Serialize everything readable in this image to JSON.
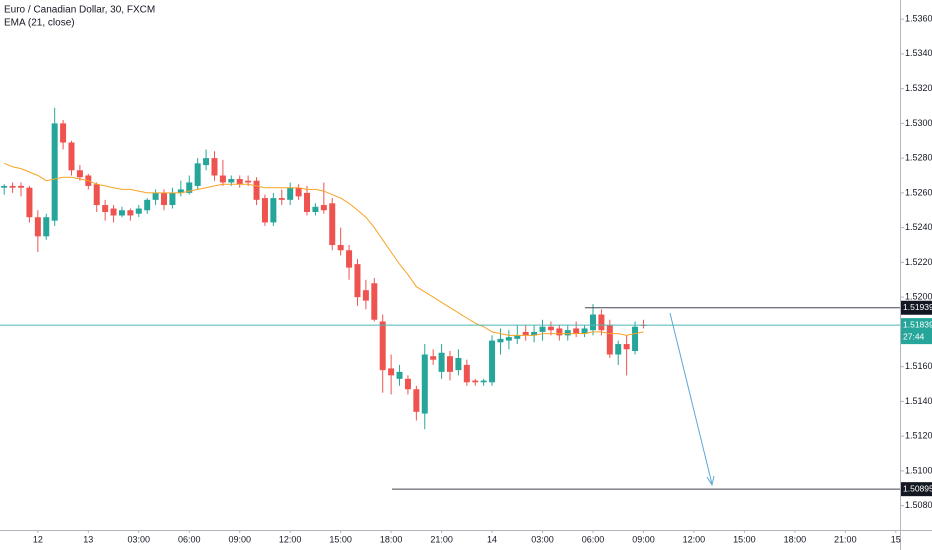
{
  "chart_data": {
    "type": "candlestick",
    "title": "Euro / Canadian Dollar, 30, FXCM",
    "up_color": "#26a69a",
    "down_color": "#ef5350",
    "categories": [
      null,
      null,
      null,
      null,
      "12",
      null,
      null,
      null,
      null,
      null,
      "13",
      null,
      null,
      null,
      null,
      null,
      "03:00",
      null,
      null,
      null,
      null,
      null,
      "06:00",
      null,
      null,
      null,
      null,
      null,
      "09:00",
      null,
      null,
      null,
      null,
      null,
      "12:00",
      null,
      null,
      null,
      null,
      null,
      "15:00",
      null,
      null,
      null,
      null,
      null,
      "18:00",
      null,
      null,
      null,
      null,
      null,
      "21:00",
      null,
      null,
      null,
      null,
      null,
      "14",
      null,
      null,
      null,
      null,
      null,
      "03:00",
      null,
      null,
      null,
      null,
      null,
      "06:00",
      null,
      null,
      null,
      null,
      null,
      "09:00",
      null,
      null,
      null,
      null,
      null,
      "12:00",
      null,
      null,
      null,
      null,
      null,
      "15:00",
      null,
      null,
      null,
      null,
      null,
      "18:00",
      null,
      null,
      null,
      null,
      null,
      "21:00",
      null,
      null,
      null,
      null,
      null,
      "15"
    ],
    "open": [
      1.5263,
      1.5264,
      1.5264,
      1.5263,
      1.5246,
      1.5235,
      1.5244,
      1.53,
      1.5289,
      1.5273,
      1.527,
      1.5265,
      1.5253,
      1.5251,
      1.5247,
      1.525,
      1.5248,
      1.525,
      1.5256,
      1.526,
      1.5253,
      1.526,
      1.526,
      1.5264,
      1.5276,
      1.528,
      1.527,
      1.5266,
      1.5268,
      1.5267,
      1.5267,
      1.5257,
      1.5243,
      1.5257,
      1.5256,
      1.5263,
      1.526,
      1.5249,
      1.5253,
      1.5254,
      1.523,
      1.5227,
      1.5219,
      1.5204,
      1.5208,
      1.5186,
      1.5159,
      1.5153,
      1.5153,
      1.5147,
      1.5133,
      1.5166,
      1.5157,
      1.5166,
      1.5158,
      1.5161,
      1.5152,
      1.5151,
      1.5151,
      1.5174,
      1.5175,
      1.5176,
      1.518,
      1.5178,
      1.518,
      1.5183,
      1.5182,
      1.5178,
      1.5182,
      1.5179,
      1.5181,
      1.519,
      1.5184,
      1.5167,
      1.5173,
      1.5169,
      1.5184,
      null,
      null,
      null,
      null,
      null,
      null,
      null,
      null,
      null,
      null,
      null,
      null,
      null,
      null,
      null,
      null,
      null,
      null,
      null,
      null,
      null,
      null,
      null,
      null,
      null,
      null,
      null,
      null,
      null,
      null
    ],
    "high": [
      1.5265,
      1.5266,
      1.5266,
      1.5264,
      1.525,
      1.5248,
      1.5309,
      1.5302,
      1.529,
      1.5276,
      1.5271,
      1.5266,
      1.5256,
      1.5253,
      1.5252,
      1.5251,
      1.5253,
      1.5257,
      1.5262,
      1.5262,
      1.5263,
      1.5267,
      1.527,
      1.528,
      1.5285,
      1.5284,
      1.5279,
      1.527,
      1.527,
      1.527,
      1.5269,
      1.5259,
      1.526,
      1.5262,
      1.5266,
      1.5265,
      1.5264,
      1.5254,
      1.5266,
      1.5257,
      1.524,
      1.523,
      1.5222,
      1.521,
      1.5211,
      1.519,
      1.5167,
      1.5161,
      1.5155,
      1.5149,
      1.5173,
      1.517,
      1.5173,
      1.5169,
      1.517,
      1.5164,
      1.5153,
      1.5153,
      1.5178,
      1.5182,
      1.5181,
      1.5184,
      1.5184,
      1.5184,
      1.5187,
      1.5186,
      1.5184,
      1.5184,
      1.5186,
      1.5184,
      1.5196,
      1.5193,
      1.5187,
      1.5175,
      1.5178,
      1.5186,
      1.5187,
      null,
      null,
      null,
      null,
      null,
      null,
      null,
      null,
      null,
      null,
      null,
      null,
      null,
      null,
      null,
      null,
      null,
      null,
      null,
      null,
      null,
      null,
      null,
      null,
      null,
      null,
      null,
      null,
      null,
      null
    ],
    "low": [
      1.5259,
      1.526,
      1.5258,
      1.5243,
      1.5226,
      1.5233,
      1.5241,
      1.5285,
      1.527,
      1.5267,
      1.5262,
      1.5249,
      1.5244,
      1.5243,
      1.5246,
      1.5244,
      1.5246,
      1.5248,
      1.5253,
      1.525,
      1.5251,
      1.5258,
      1.5259,
      1.5262,
      1.5273,
      1.5267,
      1.5264,
      1.5264,
      1.5263,
      1.5264,
      1.5253,
      1.5241,
      1.5241,
      1.5253,
      1.5253,
      1.5256,
      1.5247,
      1.5247,
      1.5248,
      1.5227,
      1.5224,
      1.521,
      1.5195,
      1.5193,
      1.5186,
      1.5145,
      1.5144,
      1.5149,
      1.5144,
      1.5129,
      1.5124,
      1.5161,
      1.5153,
      1.5152,
      1.5155,
      1.5149,
      1.5149,
      1.5149,
      1.5149,
      1.5167,
      1.517,
      1.5173,
      1.5175,
      1.5174,
      1.5175,
      1.5178,
      1.5175,
      1.5175,
      1.5177,
      1.5177,
      1.5178,
      1.5178,
      1.5165,
      1.5161,
      1.5155,
      1.5167,
      1.5182,
      null,
      null,
      null,
      null,
      null,
      null,
      null,
      null,
      null,
      null,
      null,
      null,
      null,
      null,
      null,
      null,
      null,
      null,
      null,
      null,
      null,
      null,
      null,
      null,
      null,
      null,
      null,
      null,
      null,
      null
    ],
    "close": [
      1.5264,
      1.5263,
      1.5263,
      1.5246,
      1.5235,
      1.5246,
      1.53,
      1.5289,
      1.5273,
      1.5269,
      1.5264,
      1.5253,
      1.5249,
      1.5247,
      1.525,
      1.5247,
      1.5251,
      1.5256,
      1.526,
      1.5253,
      1.526,
      1.5262,
      1.5266,
      1.5277,
      1.528,
      1.527,
      1.5266,
      1.5268,
      1.5265,
      1.5266,
      1.5256,
      1.5243,
      1.5257,
      1.5256,
      1.5263,
      1.5258,
      1.5249,
      1.5252,
      1.525,
      1.523,
      1.5227,
      1.5217,
      1.52,
      1.5198,
      1.5187,
      1.5158,
      1.5155,
      1.5157,
      1.5147,
      1.5134,
      1.5167,
      1.5164,
      1.5168,
      1.5157,
      1.5165,
      1.5151,
      1.5151,
      1.5152,
      1.5175,
      1.5176,
      1.5177,
      1.5178,
      1.5178,
      1.518,
      1.5183,
      1.5181,
      1.5178,
      1.5181,
      1.5179,
      1.5182,
      1.519,
      1.5181,
      1.5167,
      1.5173,
      1.517,
      1.5183,
      1.51839,
      null,
      null,
      null,
      null,
      null,
      null,
      null,
      null,
      null,
      null,
      null,
      null,
      null,
      null,
      null,
      null,
      null,
      null,
      null,
      null,
      null,
      null,
      null,
      null,
      null,
      null,
      null,
      null,
      null,
      null
    ],
    "series": [
      {
        "name": "EMA (21, close)",
        "color": "#f7a325",
        "values": [
          1.5277,
          1.5275,
          1.5274,
          1.5272,
          1.527,
          1.5267,
          1.5268,
          1.5269,
          1.5269,
          1.5268,
          1.5267,
          1.5265,
          1.5264,
          1.5263,
          1.5262,
          1.5262,
          1.5261,
          1.526,
          1.526,
          1.526,
          1.526,
          1.526,
          1.5261,
          1.5262,
          1.5263,
          1.5264,
          1.5265,
          1.5265,
          1.5265,
          1.5265,
          1.5264,
          1.5263,
          1.5263,
          1.5263,
          1.5263,
          1.5263,
          1.5262,
          1.5262,
          1.5261,
          1.5259,
          1.5257,
          1.5254,
          1.525,
          1.5246,
          1.524,
          1.5233,
          1.5226,
          1.5219,
          1.5213,
          1.5206,
          1.5203,
          1.52,
          1.5197,
          1.5194,
          1.5191,
          1.5188,
          1.5185,
          1.5183,
          1.518,
          1.5179,
          1.5178,
          1.5178,
          1.5178,
          1.5178,
          1.5179,
          1.5179,
          1.5179,
          1.5179,
          1.5179,
          1.5179,
          1.518,
          1.518,
          1.5179,
          1.5179,
          1.5178,
          1.5179,
          1.518,
          null,
          null,
          null,
          null,
          null,
          null,
          null,
          null,
          null,
          null,
          null,
          null,
          null,
          null,
          null,
          null,
          null,
          null,
          null,
          null,
          null,
          null,
          null,
          null,
          null,
          null,
          null,
          null,
          null,
          null
        ]
      }
    ],
    "ylim": [
      1.5066,
      1.5371
    ],
    "yticks": [
      {
        "value": 1.536,
        "label": "1.53600"
      },
      {
        "value": 1.534,
        "label": "1.53400"
      },
      {
        "value": 1.532,
        "label": "1.53200"
      },
      {
        "value": 1.53,
        "label": "1.53000"
      },
      {
        "value": 1.528,
        "label": "1.52800"
      },
      {
        "value": 1.526,
        "label": "1.52600"
      },
      {
        "value": 1.524,
        "label": "1.52400"
      },
      {
        "value": 1.522,
        "label": "1.52200"
      },
      {
        "value": 1.52,
        "label": "1.52000"
      },
      {
        "value": 1.516,
        "label": "1.51600"
      },
      {
        "value": 1.514,
        "label": "1.51400"
      },
      {
        "value": 1.512,
        "label": "1.51200"
      },
      {
        "value": 1.51,
        "label": "1.51000"
      },
      {
        "value": 1.508,
        "label": "1.50800"
      }
    ],
    "price_lines": [
      1.51939,
      1.50895
    ],
    "current_price": 1.51839,
    "countdown": "27:44"
  }
}
